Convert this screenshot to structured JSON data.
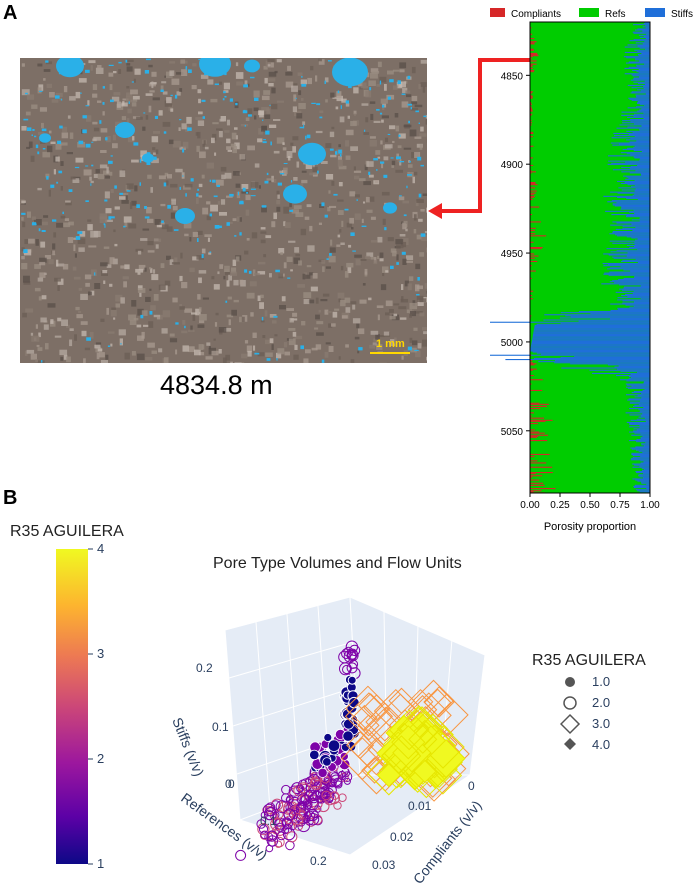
{
  "panel_a": {
    "letter": "A",
    "scale_bar_label": "1 mm",
    "depth_caption": "4834.8 m"
  },
  "panel_b": {
    "letter": "B"
  },
  "colors": {
    "compliants": "#d62728",
    "refs": "#00cc00",
    "stiffs": "#1f6fd9",
    "arrow": "#ee2222",
    "pore_blue": "#2ab0e8",
    "scale_bar": "#ffd700"
  },
  "chart_data": [
    {
      "type": "area",
      "legend": [
        "Compliants",
        "Refs",
        "Stiffs"
      ],
      "legend_placement": "top",
      "xlabel": "Porosity proportion",
      "ylabel": "",
      "xlim": [
        0.0,
        1.0
      ],
      "ylim": [
        5085,
        4820
      ],
      "x_ticks": [
        "0.00",
        "0.25",
        "0.50",
        "0.75",
        "1.00"
      ],
      "y_ticks": [
        "4850",
        "4900",
        "4950",
        "5000",
        "5050"
      ],
      "y_tick_values": [
        4850,
        4900,
        4950,
        5000,
        5050
      ],
      "highlight_depth": 4834.8,
      "depth_profile": [
        {
          "depth": 4820,
          "compliants": 0.0,
          "stiffs": 0.08
        },
        {
          "depth": 4840,
          "compliants": 0.04,
          "stiffs": 0.15
        },
        {
          "depth": 4860,
          "compliants": 0.01,
          "stiffs": 0.1
        },
        {
          "depth": 4880,
          "compliants": 0.01,
          "stiffs": 0.18
        },
        {
          "depth": 4900,
          "compliants": 0.02,
          "stiffs": 0.22
        },
        {
          "depth": 4920,
          "compliants": 0.03,
          "stiffs": 0.25
        },
        {
          "depth": 4940,
          "compliants": 0.06,
          "stiffs": 0.2
        },
        {
          "depth": 4960,
          "compliants": 0.02,
          "stiffs": 0.28
        },
        {
          "depth": 4980,
          "compliants": 0.01,
          "stiffs": 0.2
        },
        {
          "depth": 4990,
          "compliants": 0.0,
          "stiffs": 0.96
        },
        {
          "depth": 5005,
          "compliants": 0.0,
          "stiffs": 1.0
        },
        {
          "depth": 5020,
          "compliants": 0.05,
          "stiffs": 0.15
        },
        {
          "depth": 5040,
          "compliants": 0.08,
          "stiffs": 0.12
        },
        {
          "depth": 5060,
          "compliants": 0.07,
          "stiffs": 0.1
        },
        {
          "depth": 5085,
          "compliants": 0.1,
          "stiffs": 0.08
        }
      ]
    },
    {
      "type": "scatter",
      "title": "Pore Type Volumes and Flow Units",
      "axes_3d": {
        "x": {
          "label": "References (v/v)",
          "ticks": [
            "0",
            "0.1",
            "0.2"
          ]
        },
        "y": {
          "label": "Compliants (v/v)",
          "ticks": [
            "0",
            "0.01",
            "0.02",
            "0.03"
          ]
        },
        "z": {
          "label": "Stiffs (v/v)",
          "ticks": [
            "0",
            "0.1",
            "0.2"
          ]
        }
      },
      "colorbar": {
        "title": "R35 AGUILERA",
        "range": [
          1,
          4
        ],
        "ticks": [
          "1",
          "2",
          "3",
          "4"
        ],
        "colors": [
          "#0d0887",
          "#7e03a8",
          "#cc4778",
          "#f89540",
          "#f0f921"
        ]
      },
      "legend": {
        "title": "R35 AGUILERA",
        "entries": [
          {
            "label": "1.0",
            "symbol": "circle"
          },
          {
            "label": "2.0",
            "symbol": "circle-open"
          },
          {
            "label": "3.0",
            "symbol": "diamond-open"
          },
          {
            "label": "4.0",
            "symbol": "diamond"
          }
        ]
      },
      "clusters": [
        {
          "class": 1,
          "references": 0.08,
          "compliants": 0.005,
          "stiffs": 0.12,
          "spread": 0.04
        },
        {
          "class": 2,
          "references": 0.12,
          "compliants": 0.008,
          "stiffs": 0.05,
          "spread": 0.08
        },
        {
          "class": 3,
          "references": 0.14,
          "compliants": 0.004,
          "stiffs": 0.08,
          "spread": 0.05
        },
        {
          "class": 4,
          "references": 0.16,
          "compliants": 0.003,
          "stiffs": 0.07,
          "spread": 0.03
        }
      ]
    }
  ]
}
